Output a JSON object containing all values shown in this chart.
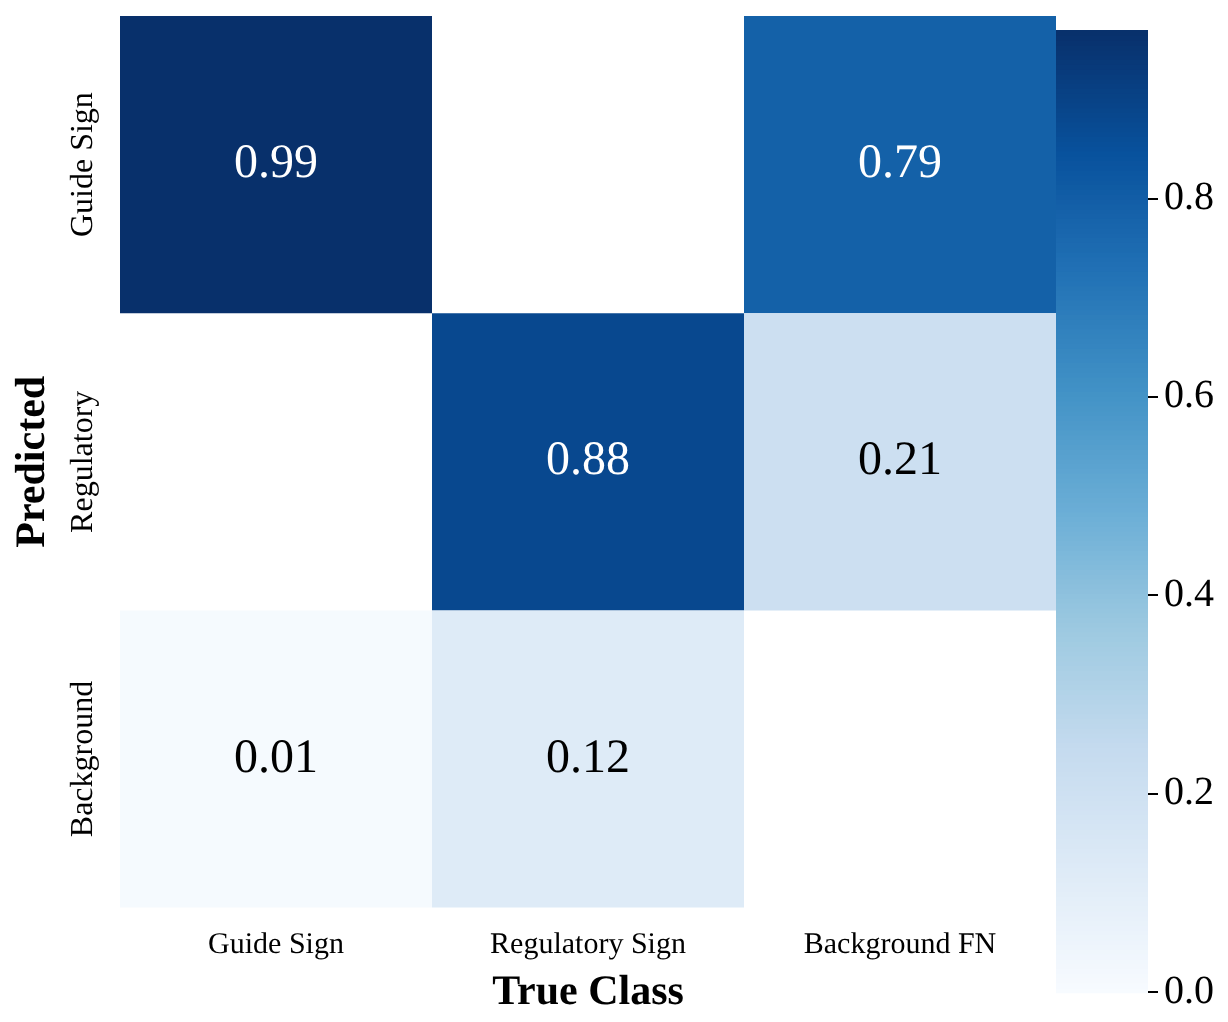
{
  "chart_data": {
    "type": "heatmap",
    "xlabel": "True Class",
    "ylabel": "Predicted",
    "categories": [
      "Guide Sign",
      "Regulatory Sign",
      "Background FN"
    ],
    "y_categories": [
      "Guide Sign",
      "Regulatory",
      "Background"
    ],
    "cells": [
      [
        0.99,
        null,
        0.79
      ],
      [
        null,
        0.88,
        0.21
      ],
      [
        0.01,
        0.12,
        null
      ]
    ],
    "clim": [
      0,
      0.97
    ],
    "cticks": [
      {
        "value": 0,
        "label": "0.0"
      },
      0.2,
      0.4,
      0.6,
      0.8
    ],
    "data_labels": true
  }
}
